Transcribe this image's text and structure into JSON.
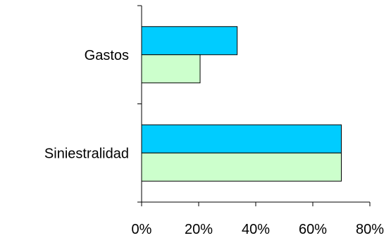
{
  "chart_data": {
    "type": "bar",
    "orientation": "horizontal",
    "categories": [
      "Gastos",
      "Siniestralidad"
    ],
    "series": [
      {
        "values": [
          33.5,
          70
        ],
        "color": "#00CCFF"
      },
      {
        "values": [
          20.5,
          70
        ],
        "color": "#CCFFCC"
      }
    ],
    "xlim": [
      0,
      80
    ],
    "xticks": [
      0,
      20,
      40,
      60,
      80
    ],
    "xtick_labels": [
      "0%",
      "20%",
      "40%",
      "60%",
      "80%"
    ],
    "grid": false,
    "legend": "none"
  }
}
